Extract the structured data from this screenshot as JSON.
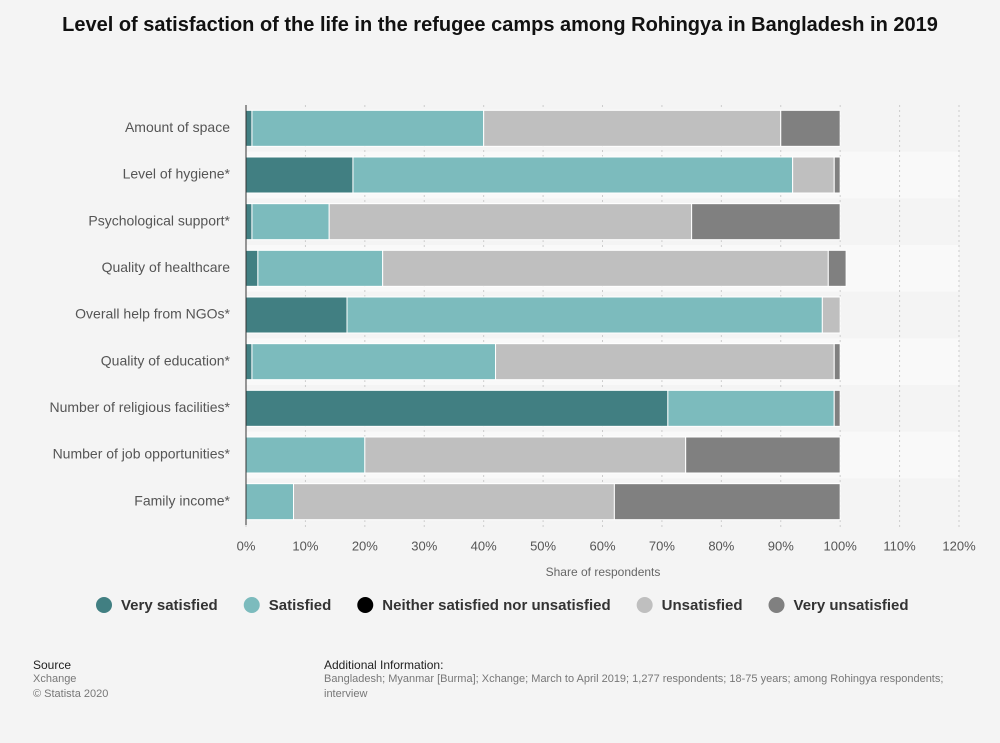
{
  "chart_data": {
    "type": "stacked-bar-horizontal",
    "title": "Level of satisfaction of the life in the refugee camps among Rohingya in Bangladesh in 2019",
    "categories": [
      "Amount of space",
      "Level of hygiene*",
      "Psychological support*",
      "Quality of healthcare",
      "Overall help from NGOs*",
      "Quality of education*",
      "Number of religious facilities*",
      "Number of job opportunities*",
      "Family income*"
    ],
    "series": [
      {
        "name": "Very satisfied",
        "color": "#417f82",
        "values": [
          1,
          18,
          1,
          2,
          17,
          1,
          71,
          0,
          0
        ]
      },
      {
        "name": "Satisfied",
        "color": "#7cbbbd",
        "values": [
          39,
          74,
          13,
          21,
          80,
          41,
          28,
          20,
          8
        ]
      },
      {
        "name": "Neither satisfied nor unsatisfied",
        "color": "#000000",
        "values": [
          0,
          0,
          0,
          0,
          0,
          0,
          0,
          0,
          0
        ]
      },
      {
        "name": "Unsatisfied",
        "color": "#bfbfbf",
        "values": [
          50,
          7,
          61,
          75,
          3,
          57,
          0,
          54,
          54
        ]
      },
      {
        "name": "Very unsatisfied",
        "color": "#808080",
        "values": [
          10,
          1,
          25,
          3,
          0,
          1,
          1,
          26,
          38
        ]
      }
    ],
    "xlim": [
      0,
      120
    ],
    "xticks": [
      {
        "value": 0,
        "label": "0%"
      },
      {
        "value": 10,
        "label": "10%"
      },
      {
        "value": 20,
        "label": "20%"
      },
      {
        "value": 30,
        "label": "30%"
      },
      {
        "value": 40,
        "label": "40%"
      },
      {
        "value": 50,
        "label": "50%"
      },
      {
        "value": 60,
        "label": "60%"
      },
      {
        "value": 70,
        "label": "70%"
      },
      {
        "value": 80,
        "label": "80%"
      },
      {
        "value": 90,
        "label": "90%"
      },
      {
        "value": 100,
        "label": "100%"
      },
      {
        "value": 110,
        "label": "110%"
      },
      {
        "value": 120,
        "label": "120%"
      }
    ],
    "xlabel": "Share of respondents",
    "grid": true
  },
  "footer": {
    "source_title": "Source",
    "source": "Xchange",
    "copyright": "© Statista 2020",
    "info_title": "Additional Information:",
    "info": "Bangladesh; Myanmar [Burma]; Xchange; March to April 2019; 1,277 respondents; 18-75 years; among Rohingya respondents;",
    "info2": "interview"
  }
}
